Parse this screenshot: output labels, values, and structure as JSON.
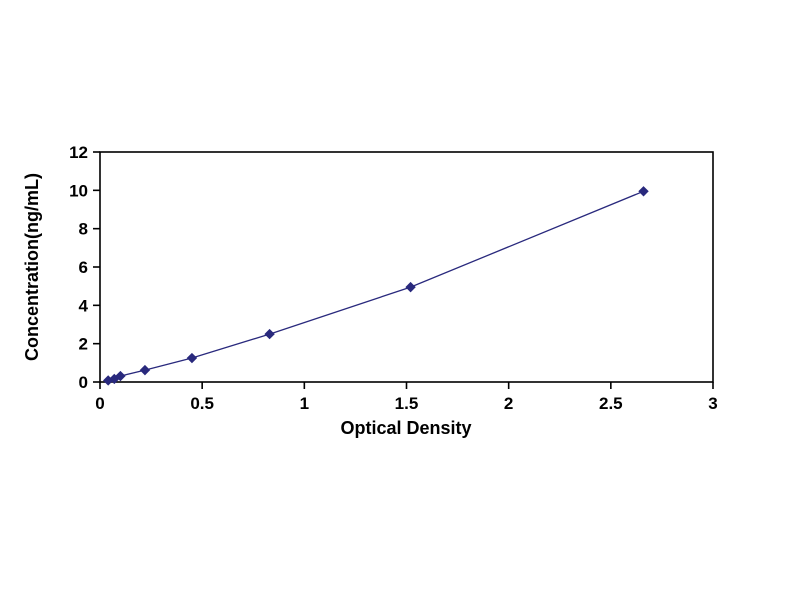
{
  "chart_data": {
    "type": "scatter",
    "title": "",
    "xlabel": "Optical Density",
    "ylabel": "Concentration(ng/mL)",
    "xlim": [
      0,
      3
    ],
    "ylim": [
      0,
      12
    ],
    "xticks": [
      0,
      0.5,
      1,
      1.5,
      2,
      2.5,
      3
    ],
    "yticks": [
      0,
      2,
      4,
      6,
      8,
      10,
      12
    ],
    "grid": false,
    "legend": "none",
    "line_color": "#29297d",
    "marker": "diamond",
    "marker_color": "#29297d",
    "frame_color": "#000000",
    "points": [
      [
        0.04,
        0.08
      ],
      [
        0.07,
        0.16
      ],
      [
        0.1,
        0.31
      ],
      [
        0.22,
        0.62
      ],
      [
        0.45,
        1.25
      ],
      [
        0.83,
        2.5
      ],
      [
        1.52,
        4.95
      ],
      [
        2.66,
        9.95
      ]
    ]
  }
}
